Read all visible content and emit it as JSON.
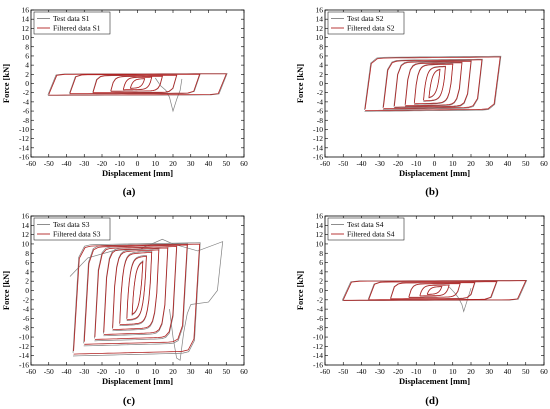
{
  "figure": {
    "panel_labels": [
      "(a)",
      "(b)",
      "(c)",
      "(d)"
    ]
  },
  "chart_data": [
    {
      "type": "line",
      "panel": "(a)",
      "xlabel": "Displacement [mm]",
      "ylabel": "Force [kN]",
      "xlim": [
        -60,
        60
      ],
      "ylim": [
        -16,
        16
      ],
      "xticks": [
        -60,
        -50,
        -40,
        -30,
        -20,
        -10,
        0,
        10,
        20,
        30,
        40,
        50,
        60
      ],
      "yticks": [
        -16,
        -14,
        -12,
        -10,
        -8,
        -6,
        -4,
        -2,
        0,
        2,
        4,
        6,
        8,
        10,
        12,
        14,
        16
      ],
      "grid": false,
      "legend": "top-left",
      "series": [
        {
          "name": "Test data S1",
          "color": "#808080"
        },
        {
          "name": "Filtered data S1",
          "color": "#b22222"
        }
      ],
      "loops": [
        {
          "amp_pos": 4,
          "amp_neg": 4,
          "fy_pos": 1.0,
          "fy_neg": 1.0
        },
        {
          "amp_pos": 8,
          "amp_neg": 8,
          "fy_pos": 1.3,
          "fy_neg": 1.3
        },
        {
          "amp_pos": 14,
          "amp_neg": 15,
          "fy_pos": 1.5,
          "fy_neg": 1.6
        },
        {
          "amp_pos": 22,
          "amp_neg": 25,
          "fy_pos": 1.7,
          "fy_neg": 1.9
        },
        {
          "amp_pos": 35,
          "amp_neg": 38,
          "fy_pos": 1.9,
          "fy_neg": 2.1
        },
        {
          "amp_pos": 50,
          "amp_neg": 50,
          "fy_pos": 2.0,
          "fy_neg": 2.4
        }
      ],
      "test_excursion": [
        [
          10,
          1.2
        ],
        [
          13,
          -0.5
        ],
        [
          16,
          -1.5
        ],
        [
          18,
          -3.0
        ],
        [
          20,
          -6.0
        ],
        [
          22,
          -3.5
        ],
        [
          24,
          -1.5
        ],
        [
          25,
          1.0
        ]
      ]
    },
    {
      "type": "line",
      "panel": "(b)",
      "xlabel": "Displacement [mm]",
      "ylabel": "Force [kN]",
      "xlim": [
        -60,
        60
      ],
      "ylim": [
        -16,
        16
      ],
      "xticks": [
        -60,
        -50,
        -40,
        -30,
        -20,
        -10,
        0,
        10,
        20,
        30,
        40,
        50,
        60
      ],
      "yticks": [
        -16,
        -14,
        -12,
        -10,
        -8,
        -6,
        -4,
        -2,
        0,
        2,
        4,
        6,
        8,
        10,
        12,
        14,
        16
      ],
      "grid": false,
      "legend": "top-left",
      "series": [
        {
          "name": "Test data S2",
          "color": "#808080"
        },
        {
          "name": "Filtered data S2",
          "color": "#b22222"
        }
      ],
      "loops": [
        {
          "amp_pos": 3,
          "amp_neg": 3,
          "fy_pos": 3.0,
          "fy_neg": 3.0
        },
        {
          "amp_pos": 6,
          "amp_neg": 6,
          "fy_pos": 3.5,
          "fy_neg": 3.6
        },
        {
          "amp_pos": 10,
          "amp_neg": 11,
          "fy_pos": 4.0,
          "fy_neg": 4.2
        },
        {
          "amp_pos": 15,
          "amp_neg": 16,
          "fy_pos": 4.3,
          "fy_neg": 4.6
        },
        {
          "amp_pos": 20,
          "amp_neg": 22,
          "fy_pos": 4.6,
          "fy_neg": 4.9
        },
        {
          "amp_pos": 26,
          "amp_neg": 28,
          "fy_pos": 4.9,
          "fy_neg": 5.2
        },
        {
          "amp_pos": 36,
          "amp_neg": 38,
          "fy_pos": 5.5,
          "fy_neg": 5.6
        }
      ]
    },
    {
      "type": "line",
      "panel": "(c)",
      "xlabel": "Displacement [mm]",
      "ylabel": "Force [kN]",
      "xlim": [
        -60,
        60
      ],
      "ylim": [
        -16,
        16
      ],
      "xticks": [
        -60,
        -50,
        -40,
        -30,
        -20,
        -10,
        0,
        10,
        20,
        30,
        40,
        50,
        60
      ],
      "yticks": [
        -16,
        -14,
        -12,
        -10,
        -8,
        -6,
        -4,
        -2,
        0,
        2,
        4,
        6,
        8,
        10,
        12,
        14,
        16
      ],
      "grid": false,
      "legend": "top-left",
      "series": [
        {
          "name": "Test data S3",
          "color": "#808080"
        },
        {
          "name": "Filtered data S3",
          "color": "#b22222"
        }
      ],
      "loops": [
        {
          "amp_pos": 3,
          "amp_neg": 3,
          "fy_pos": 6.0,
          "fy_neg": 5.0
        },
        {
          "amp_pos": 5,
          "amp_neg": 6,
          "fy_pos": 7.0,
          "fy_neg": 6.0
        },
        {
          "amp_pos": 8,
          "amp_neg": 10,
          "fy_pos": 7.8,
          "fy_neg": 7.0
        },
        {
          "amp_pos": 12,
          "amp_neg": 14,
          "fy_pos": 8.3,
          "fy_neg": 8.0
        },
        {
          "amp_pos": 17,
          "amp_neg": 19,
          "fy_pos": 8.7,
          "fy_neg": 9.0
        },
        {
          "amp_pos": 22,
          "amp_neg": 24,
          "fy_pos": 9.0,
          "fy_neg": 10.0
        },
        {
          "amp_pos": 28,
          "amp_neg": 30,
          "fy_pos": 9.3,
          "fy_neg": 11.0
        },
        {
          "amp_pos": 35,
          "amp_neg": 36,
          "fy_pos": 9.5,
          "fy_neg": 13.0
        }
      ],
      "test_excursion": [
        [
          18,
          -4.0
        ],
        [
          20,
          -10.0
        ],
        [
          22,
          -14.5
        ],
        [
          24,
          -15.0
        ],
        [
          26,
          -9.0
        ],
        [
          28,
          -5.0
        ],
        [
          30,
          -3.0
        ]
      ],
      "test_outer": [
        [
          -38,
          3.0
        ],
        [
          -28,
          7.0
        ],
        [
          -14,
          8.5
        ],
        [
          2,
          9.0
        ],
        [
          14,
          11.0
        ],
        [
          20,
          10.0
        ],
        [
          34,
          8.5
        ],
        [
          48,
          10.5
        ],
        [
          45,
          0.0
        ],
        [
          40,
          -2.5
        ],
        [
          30,
          -3.0
        ]
      ]
    },
    {
      "type": "line",
      "panel": "(d)",
      "xlabel": "Displacement [mm]",
      "ylabel": "Force [kN]",
      "xlim": [
        -60,
        60
      ],
      "ylim": [
        -16,
        16
      ],
      "xticks": [
        -60,
        -50,
        -40,
        -30,
        -20,
        -10,
        0,
        10,
        20,
        30,
        40,
        50,
        60
      ],
      "yticks": [
        -16,
        -14,
        -12,
        -10,
        -8,
        -6,
        -4,
        -2,
        0,
        2,
        4,
        6,
        8,
        10,
        12,
        14,
        16
      ],
      "grid": false,
      "legend": "top-left",
      "series": [
        {
          "name": "Test data S4",
          "color": "#808080"
        },
        {
          "name": "Filtered data S4",
          "color": "#b22222"
        }
      ],
      "loops": [
        {
          "amp_pos": 4,
          "amp_neg": 4,
          "fy_pos": 0.8,
          "fy_neg": 0.8
        },
        {
          "amp_pos": 8,
          "amp_neg": 8,
          "fy_pos": 1.1,
          "fy_neg": 1.1
        },
        {
          "amp_pos": 14,
          "amp_neg": 14,
          "fy_pos": 1.4,
          "fy_neg": 1.4
        },
        {
          "amp_pos": 22,
          "amp_neg": 24,
          "fy_pos": 1.6,
          "fy_neg": 1.7
        },
        {
          "amp_pos": 34,
          "amp_neg": 36,
          "fy_pos": 1.8,
          "fy_neg": 1.9
        },
        {
          "amp_pos": 50,
          "amp_neg": 50,
          "fy_pos": 2.0,
          "fy_neg": 2.0
        }
      ],
      "test_excursion": [
        [
          8,
          0.8
        ],
        [
          11,
          -0.5
        ],
        [
          13,
          -1.5
        ],
        [
          15,
          -3.0
        ],
        [
          16,
          -4.5
        ],
        [
          18,
          -2.0
        ],
        [
          20,
          0.5
        ]
      ]
    }
  ]
}
